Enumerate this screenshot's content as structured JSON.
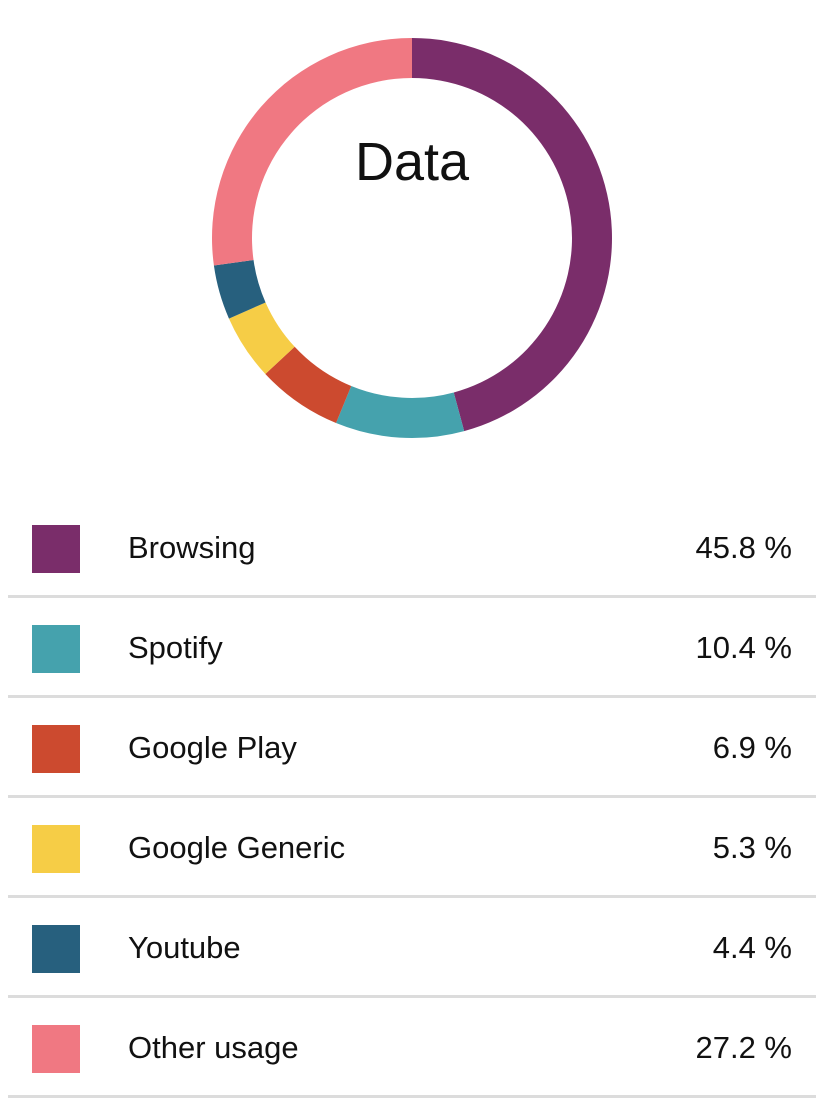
{
  "chart_data": {
    "type": "pie",
    "title": "Data",
    "donut": true,
    "legend_position": "bottom",
    "categories": [
      "Browsing",
      "Spotify",
      "Google Play",
      "Google Generic",
      "Youtube",
      "Other usage"
    ],
    "values": [
      45.8,
      10.4,
      6.9,
      5.3,
      4.4,
      27.2
    ],
    "value_labels": [
      "45.8 %",
      "10.4 %",
      "6.9 %",
      "5.3 %",
      "4.4 %",
      "27.2 %"
    ],
    "colors": [
      "#7a2d6a",
      "#45a2ad",
      "#cc4a2f",
      "#f6cd46",
      "#27607e",
      "#f07882"
    ]
  }
}
